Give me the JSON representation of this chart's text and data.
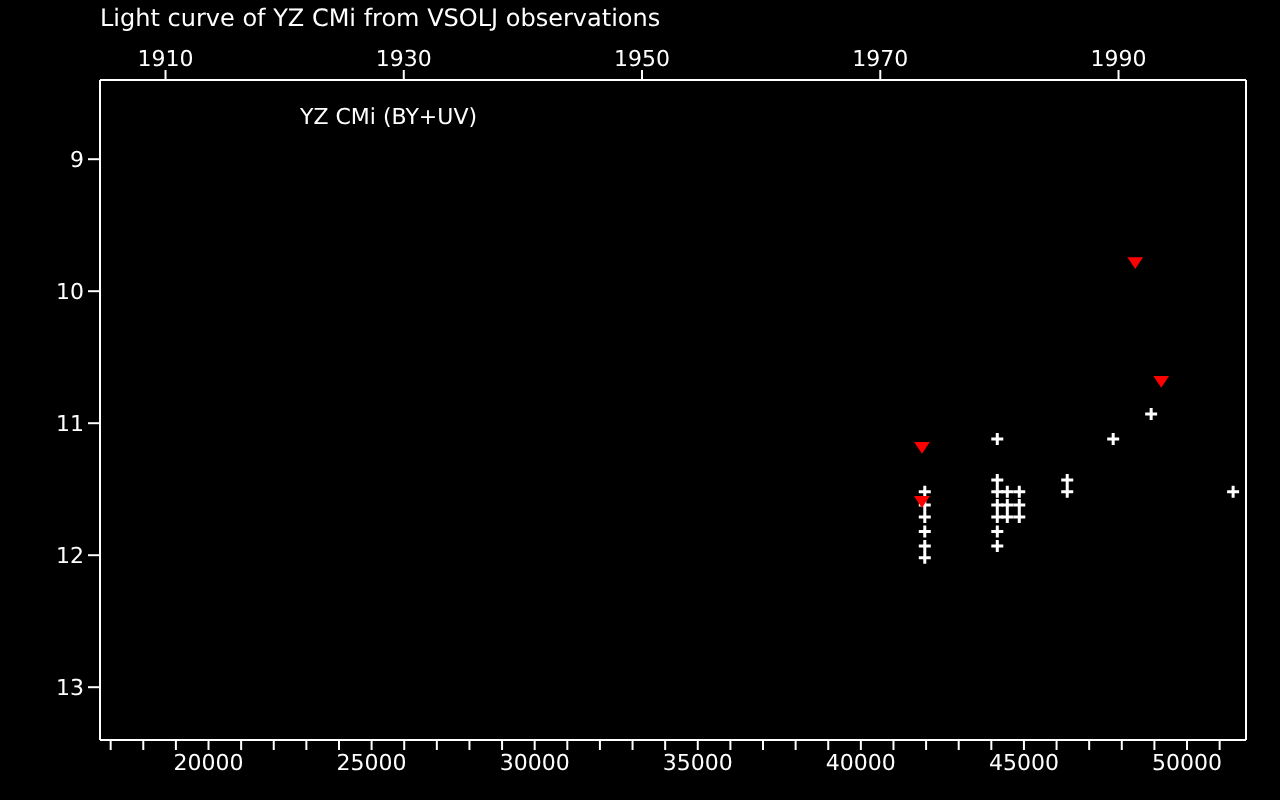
{
  "chart_data": {
    "type": "scatter",
    "title": "Light curve of YZ CMi from VSOLJ observations",
    "annotations": [
      "YZ CMi (BY+UV)"
    ],
    "xlim": [
      16673,
      51808
    ],
    "xticks": [
      {
        "value": 17000,
        "label": null
      },
      {
        "value": 18000,
        "label": null
      },
      {
        "value": 19000,
        "label": null
      },
      20000,
      {
        "value": 21000,
        "label": null
      },
      {
        "value": 22000,
        "label": null
      },
      {
        "value": 23000,
        "label": null
      },
      {
        "value": 24000,
        "label": null
      },
      25000,
      {
        "value": 26000,
        "label": null
      },
      {
        "value": 27000,
        "label": null
      },
      {
        "value": 28000,
        "label": null
      },
      {
        "value": 29000,
        "label": null
      },
      30000,
      {
        "value": 31000,
        "label": null
      },
      {
        "value": 32000,
        "label": null
      },
      {
        "value": 33000,
        "label": null
      },
      {
        "value": 34000,
        "label": null
      },
      35000,
      {
        "value": 36000,
        "label": null
      },
      {
        "value": 37000,
        "label": null
      },
      {
        "value": 38000,
        "label": null
      },
      {
        "value": 39000,
        "label": null
      },
      40000,
      {
        "value": 41000,
        "label": null
      },
      {
        "value": 42000,
        "label": null
      },
      {
        "value": 43000,
        "label": null
      },
      {
        "value": 44000,
        "label": null
      },
      45000,
      {
        "value": 46000,
        "label": null
      },
      {
        "value": 47000,
        "label": null
      },
      {
        "value": 48000,
        "label": null
      },
      {
        "value": 49000,
        "label": null
      },
      50000,
      {
        "value": 51000,
        "label": null
      }
    ],
    "x2lim": [
      1904.5,
      2000.7
    ],
    "x2ticks": [
      1910,
      1930,
      1950,
      1970,
      1990
    ],
    "ylim": [
      13.4,
      8.4
    ],
    "yticks": [
      9,
      10,
      11,
      12,
      13
    ],
    "series": [
      {
        "color": "#ffffff",
        "marker": "cross",
        "x": [
          41960,
          41960,
          41960,
          41960,
          41960,
          41960,
          44183,
          44183,
          44183,
          44183,
          44183,
          44183,
          44183,
          44490,
          44490,
          44490,
          44857,
          44857,
          44857,
          46327,
          46327,
          47736,
          48900,
          51413
        ],
        "values": [
          11.52,
          11.62,
          11.71,
          11.82,
          11.93,
          12.02,
          11.12,
          11.43,
          11.52,
          11.62,
          11.71,
          11.82,
          11.93,
          11.52,
          11.62,
          11.71,
          11.52,
          11.62,
          11.71,
          11.43,
          11.52,
          11.12,
          10.93,
          11.52
        ]
      },
      {
        "color": "#ff0000",
        "marker": "triangle",
        "x": [
          41873,
          41873,
          48411,
          49208
        ],
        "values": [
          11.18,
          11.59,
          9.78,
          10.68
        ]
      }
    ]
  }
}
